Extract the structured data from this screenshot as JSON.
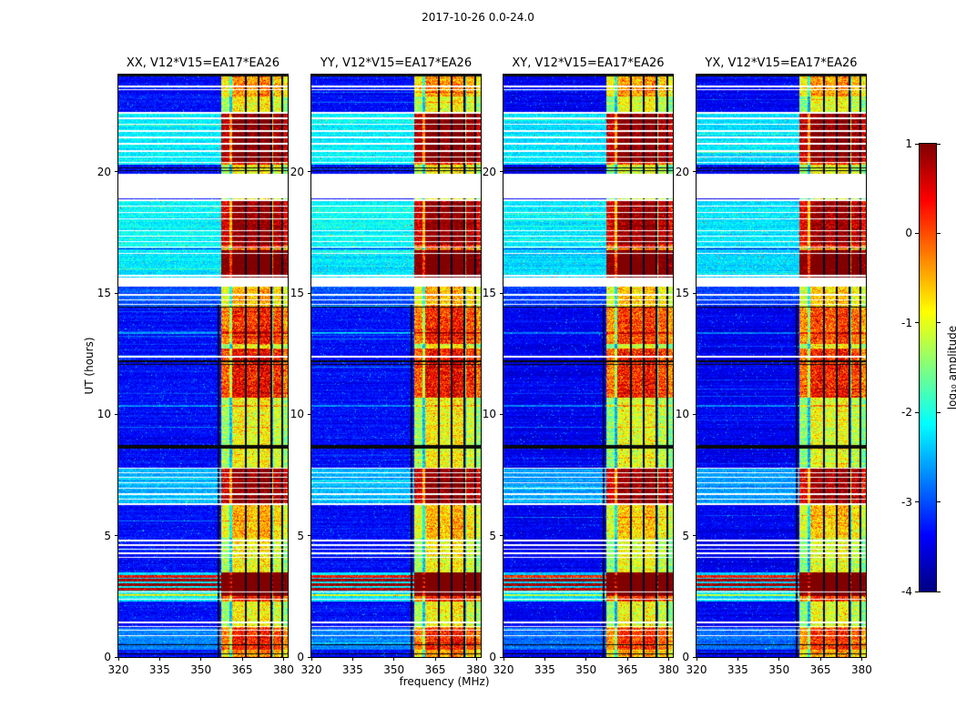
{
  "figure": {
    "title": "2017-10-26 0.0-24.0",
    "xlabel": "frequency (MHz)",
    "ylabel": "UT (hours)",
    "background": "#ffffff"
  },
  "chart_data": {
    "type": "heatmap",
    "colormap": "jet",
    "x_range": [
      320,
      381.5
    ],
    "y_range": [
      0,
      24
    ],
    "x_ticks": [
      320,
      335,
      350,
      365,
      380
    ],
    "y_ticks": [
      0,
      5,
      10,
      15,
      20
    ],
    "colorbar": {
      "label": "log₁₀ amplitude",
      "ticks": [
        1,
        0,
        -1,
        -2,
        -3,
        -4
      ],
      "range": [
        -4,
        1
      ]
    },
    "panels": [
      {
        "title": "XX, V12*V15=EA17*EA26",
        "seed": 101,
        "bg_offset": 0
      },
      {
        "title": "YY, V12*V15=EA17*EA26",
        "seed": 202,
        "bg_offset": 0
      },
      {
        "title": "XY, V12*V15=EA17*EA26",
        "seed": 303,
        "bg_offset": -0.1
      },
      {
        "title": "YX, V12*V15=EA17*EA26",
        "seed": 404,
        "bg_offset": -0.1
      }
    ],
    "features": {
      "base_level": -3.35,
      "noise": 0.5,
      "rfi_band": {
        "f0": 357.5,
        "f1": 381.5
      },
      "freq_stripes": [
        {
          "f0": 357.5,
          "f1": 360.3,
          "add": 2.0
        },
        {
          "f0": 360.3,
          "f1": 361.2,
          "add": 0.9
        },
        {
          "f0": 361.2,
          "f1": 365.8,
          "add": 2.5
        },
        {
          "f0": 366.6,
          "f1": 370.6,
          "add": 2.35
        },
        {
          "f0": 371.4,
          "f1": 375.2,
          "add": 2.55
        },
        {
          "f0": 376.1,
          "f1": 379.1,
          "add": 2.25
        },
        {
          "f0": 379.9,
          "f1": 381.5,
          "add": 1.9
        }
      ],
      "freq_dark_lines": [
        {
          "f": 356.3,
          "w": 0.5,
          "t0": 0,
          "t1": 14.5
        },
        {
          "f": 366.2,
          "w": 0.55,
          "t0": 0,
          "t1": 24
        },
        {
          "f": 371.0,
          "w": 0.55,
          "t0": 0,
          "t1": 24
        },
        {
          "f": 375.6,
          "w": 0.6,
          "t0": 0,
          "t1": 24
        },
        {
          "f": 379.5,
          "w": 0.5,
          "t0": 0,
          "t1": 24
        }
      ],
      "cyan_bands": [
        {
          "t0": 20.3,
          "t1": 22.45,
          "add": 1.15
        },
        {
          "t0": 16.85,
          "t1": 18.88,
          "add": 1.2
        },
        {
          "t0": 15.58,
          "t1": 16.8,
          "add": 1.1
        },
        {
          "t0": 14.45,
          "t1": 15.25,
          "add": 0.35
        },
        {
          "t0": 6.28,
          "t1": 7.8,
          "add": 0.85
        },
        {
          "t0": 2.3,
          "t1": 3.5,
          "add": 1.1
        },
        {
          "t0": 0.3,
          "t1": 1.2,
          "add": 0.6
        }
      ],
      "rfi_hot_times": [
        {
          "t0": 2.6,
          "t1": 3.5,
          "add": 1.6
        },
        {
          "t0": 6.35,
          "t1": 7.75,
          "add": 1.1
        },
        {
          "t0": 10.7,
          "t1": 12.7,
          "add": 1.25
        },
        {
          "t0": 12.9,
          "t1": 14.4,
          "add": 1.05
        },
        {
          "t0": 15.6,
          "t1": 16.75,
          "add": 1.45
        },
        {
          "t0": 17.0,
          "t1": 18.85,
          "add": 0.7
        },
        {
          "t0": 20.4,
          "t1": 22.4,
          "add": 0.95
        },
        {
          "t0": 23.1,
          "t1": 23.95,
          "add": 0.55
        },
        {
          "t0": 0.0,
          "t1": 1.25,
          "add": 0.5
        },
        {
          "t0": 4.9,
          "t1": 6.3,
          "add": 0.35
        }
      ],
      "broadband_hot_lines": [
        {
          "t": 3.32,
          "w": 0.09,
          "add": 2.6
        },
        {
          "t": 3.16,
          "w": 0.1,
          "add": 3.1
        },
        {
          "t": 2.97,
          "w": 0.12,
          "add": 3.3
        },
        {
          "t": 2.8,
          "w": 0.09,
          "add": 2.9
        },
        {
          "t": 2.55,
          "w": 0.05,
          "add": 1.2
        },
        {
          "t": 13.35,
          "w": 0.04,
          "add": 0.7
        },
        {
          "t": 10.35,
          "w": 0.04,
          "add": 0.7
        }
      ],
      "white_gaps": [
        [
          18.9,
          19.9
        ],
        [
          15.27,
          15.58
        ]
      ],
      "white_lines": [
        23.52,
        23.38,
        22.42,
        22.2,
        21.95,
        21.68,
        21.42,
        21.15,
        20.85,
        20.6,
        20.38,
        18.82,
        18.58,
        18.32,
        18.06,
        17.56,
        17.34,
        17.12,
        16.9,
        16.64,
        15.72,
        15.6,
        14.92,
        14.72,
        14.54,
        12.38,
        7.78,
        7.6,
        7.4,
        7.18,
        6.95,
        6.72,
        6.5,
        6.3,
        4.8,
        4.62,
        4.45,
        4.28,
        4.1,
        2.68,
        2.38,
        1.42,
        1.26,
        1.1,
        0.88
      ],
      "black_lines": [
        {
          "t": 23.95,
          "w": 0.08
        },
        {
          "t": 20.16,
          "w": 0.06
        },
        {
          "t": 20.04,
          "w": 0.05
        },
        {
          "t": 14.42,
          "w": 0.06
        },
        {
          "t": 12.2,
          "w": 0.08
        },
        {
          "t": 12.06,
          "w": 0.05
        },
        {
          "t": 8.66,
          "w": 0.12
        },
        {
          "t": 0.5,
          "w": 0.05
        },
        {
          "t": 0.12,
          "w": 0.05
        }
      ]
    }
  }
}
